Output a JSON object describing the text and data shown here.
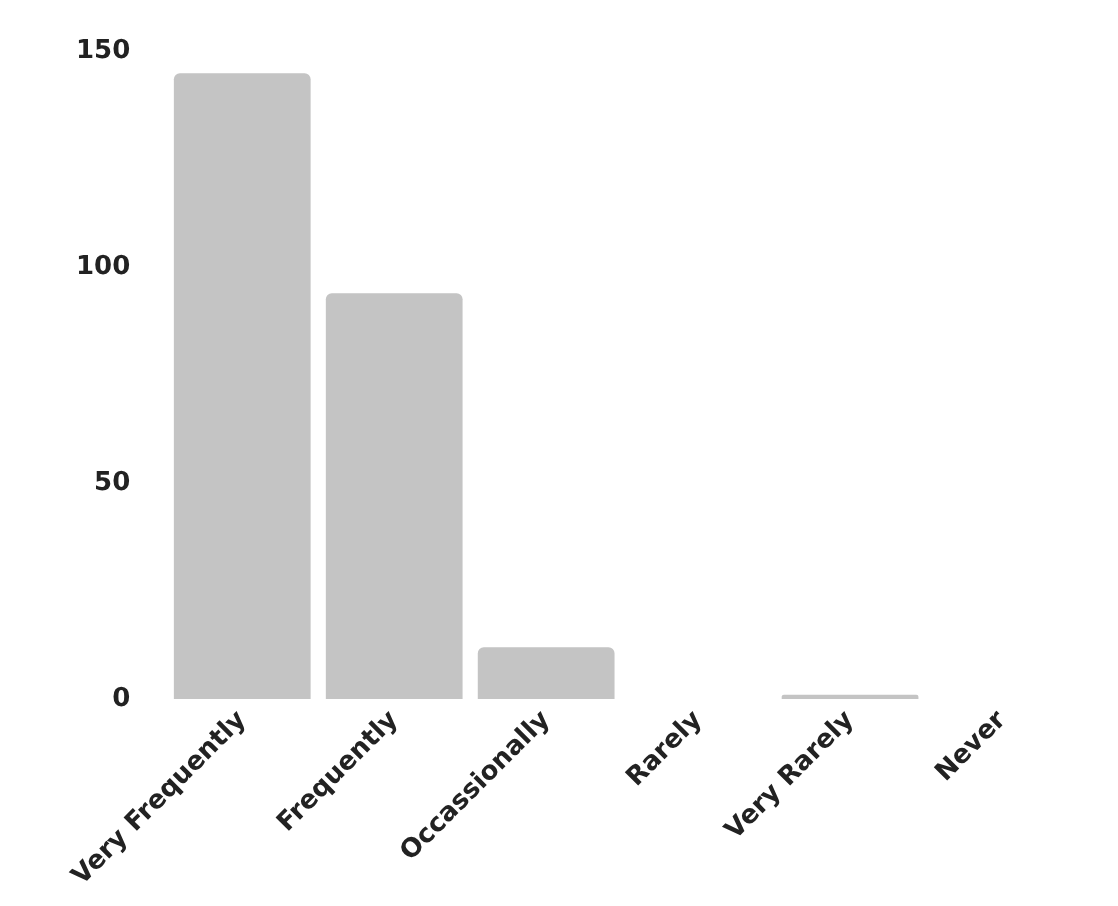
{
  "chart_data": {
    "type": "bar",
    "categories": [
      "Very Frequently",
      "Frequently",
      "Occassionally",
      "Rarely",
      "Very Rarely",
      "Never"
    ],
    "values": [
      145,
      94,
      12,
      0,
      1,
      0
    ],
    "color": "#c4c4c4",
    "ylim": [
      0,
      150
    ],
    "yticks": [
      0,
      50,
      100,
      150
    ],
    "grid": false,
    "legend": false
  }
}
